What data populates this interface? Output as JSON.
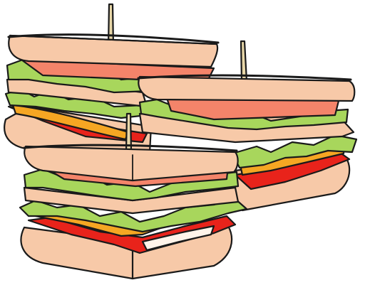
{
  "illustration": {
    "subject": "club-sandwiches",
    "colors": {
      "background": "#ffffff",
      "outline": "#1a1a1a",
      "bread": "#f7c9a8",
      "bread_shadow": "#eab08c",
      "ham": "#f4846a",
      "lettuce": "#a8d65c",
      "cheese": "#f5a623",
      "tomato": "#e8231b",
      "toothpick": "#e8d7a8",
      "mayo": "#fff4ea"
    }
  }
}
